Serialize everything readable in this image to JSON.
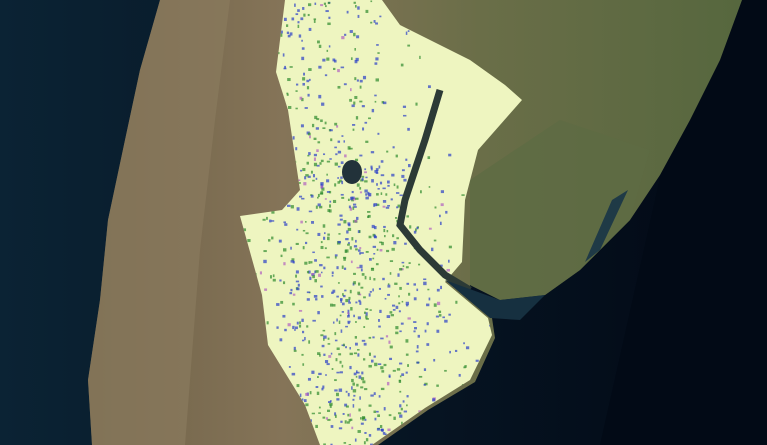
{
  "map": {
    "type": "satellite imagery with classification overlay",
    "colors": {
      "ocean_deep": "#020a18",
      "ocean_shelf": "#0d2a3a",
      "land_arid": "#7a6a4e",
      "land_green": "#5d6a42",
      "overlay_base": "#eef5c0",
      "class_blue": "#2a3fc8",
      "class_green": "#2e8a2e",
      "class_magenta": "#b060c0",
      "water_river": "#2c3a36"
    }
  }
}
